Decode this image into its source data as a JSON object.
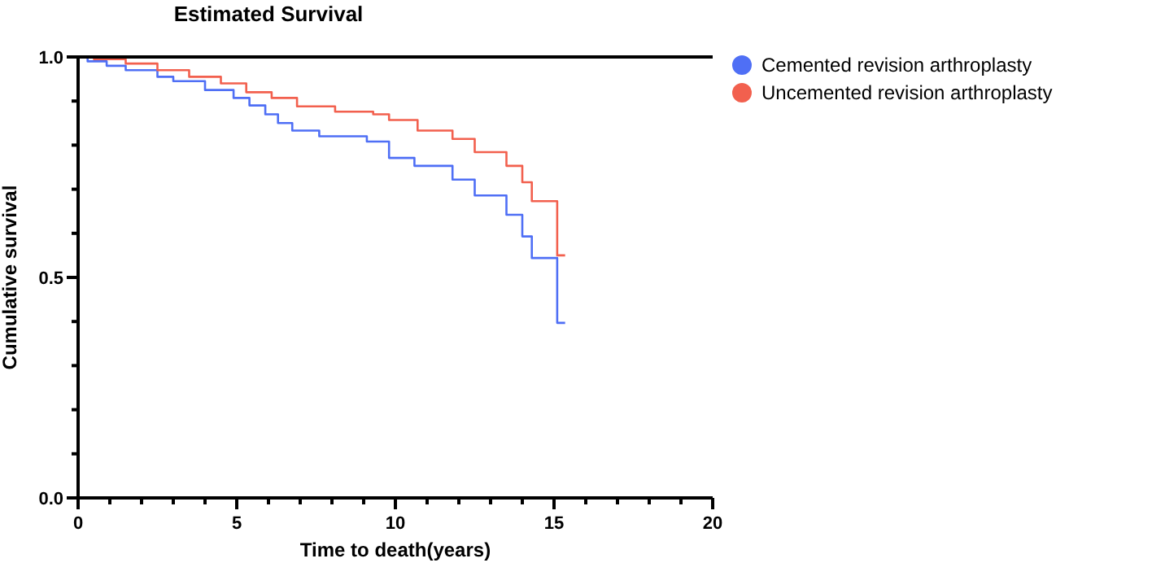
{
  "chart_data": {
    "type": "step",
    "title": "Estimated Survival",
    "xlabel": "Time to death(years)",
    "ylabel": "Cumulative survival",
    "xlim": [
      0,
      20
    ],
    "xticks": [
      0,
      {
        "value": 1,
        "label": null
      },
      {
        "value": 2,
        "label": null
      },
      {
        "value": 3,
        "label": null
      },
      {
        "value": 4,
        "label": null
      },
      5,
      {
        "value": 6,
        "label": null
      },
      {
        "value": 7,
        "label": null
      },
      {
        "value": 8,
        "label": null
      },
      {
        "value": 9,
        "label": null
      },
      10,
      {
        "value": 11,
        "label": null
      },
      {
        "value": 12,
        "label": null
      },
      {
        "value": 13,
        "label": null
      },
      {
        "value": 14,
        "label": null
      },
      15,
      {
        "value": 16,
        "label": null
      },
      {
        "value": 17,
        "label": null
      },
      {
        "value": 18,
        "label": null
      },
      {
        "value": 19,
        "label": null
      },
      20
    ],
    "ylim": [
      0,
      1
    ],
    "yticks": [
      {
        "value": 0,
        "label": "0.0"
      },
      {
        "value": 0.1,
        "label": null
      },
      {
        "value": 0.2,
        "label": null
      },
      {
        "value": 0.3,
        "label": null
      },
      {
        "value": 0.4,
        "label": null
      },
      0.5,
      {
        "value": 0.6,
        "label": null
      },
      {
        "value": 0.7,
        "label": null
      },
      {
        "value": 0.8,
        "label": null
      },
      {
        "value": 0.9,
        "label": null
      },
      {
        "value": 1,
        "label": "1.0"
      }
    ],
    "legend": "top right",
    "grid": false,
    "marker": "none",
    "line_style": "solid",
    "series": [
      {
        "name": "Cemented revision arthroplasty",
        "color": "#4f6ff5",
        "x": [
          0,
          0.3,
          0.9,
          1.5,
          2.5,
          3.0,
          4.0,
          4.9,
          5.4,
          5.9,
          6.3,
          6.75,
          7.6,
          9.1,
          9.8,
          10.6,
          11.8,
          12.5,
          13.5,
          14.0,
          14.3,
          15.1,
          15.35
        ],
        "values": [
          1,
          0.99,
          0.98,
          0.97,
          0.955,
          0.945,
          0.925,
          0.907,
          0.89,
          0.87,
          0.85,
          0.833,
          0.82,
          0.808,
          0.771,
          0.753,
          0.722,
          0.686,
          0.642,
          0.593,
          0.544,
          0.397,
          0.397
        ]
      },
      {
        "name": "Uncemented revision arthroplasty",
        "color": "#f2604e",
        "x": [
          0,
          0.5,
          1.5,
          2.5,
          3.5,
          4.5,
          5.3,
          6.1,
          6.9,
          8.1,
          9.3,
          9.8,
          10.7,
          11.8,
          12.5,
          13.5,
          14.0,
          14.3,
          15.1,
          15.35
        ],
        "values": [
          1,
          0.995,
          0.985,
          0.97,
          0.955,
          0.94,
          0.92,
          0.907,
          0.888,
          0.876,
          0.87,
          0.857,
          0.833,
          0.814,
          0.784,
          0.753,
          0.716,
          0.673,
          0.55,
          0.55
        ]
      }
    ]
  }
}
